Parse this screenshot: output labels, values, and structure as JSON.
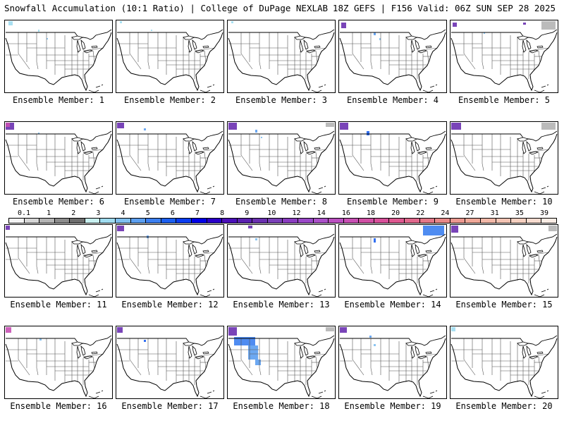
{
  "header": {
    "title": "Snowfall Accumulation (10:1 Ratio) | College of DuPage NEXLAB",
    "subtitle": "18Z GEFS | F156 Valid: 06Z SUN SEP 28 2025"
  },
  "panels": [
    {
      "caption": "Ensemble Member: 1",
      "member": 1
    },
    {
      "caption": "Ensemble Member: 2",
      "member": 2
    },
    {
      "caption": "Ensemble Member: 3",
      "member": 3
    },
    {
      "caption": "Ensemble Member: 4",
      "member": 4
    },
    {
      "caption": "Ensemble Member: 5",
      "member": 5
    },
    {
      "caption": "Ensemble Member: 6",
      "member": 6
    },
    {
      "caption": "Ensemble Member: 7",
      "member": 7
    },
    {
      "caption": "Ensemble Member: 8",
      "member": 8
    },
    {
      "caption": "Ensemble Member: 9",
      "member": 9
    },
    {
      "caption": "Ensemble Member: 10",
      "member": 10
    },
    {
      "caption": "Ensemble Member: 11",
      "member": 11
    },
    {
      "caption": "Ensemble Member: 12",
      "member": 12
    },
    {
      "caption": "Ensemble Member: 13",
      "member": 13
    },
    {
      "caption": "Ensemble Member: 14",
      "member": 14
    },
    {
      "caption": "Ensemble Member: 15",
      "member": 15
    },
    {
      "caption": "Ensemble Member: 16",
      "member": 16
    },
    {
      "caption": "Ensemble Member: 17",
      "member": 17
    },
    {
      "caption": "Ensemble Member: 18",
      "member": 18
    },
    {
      "caption": "Ensemble Member: 19",
      "member": 19
    },
    {
      "caption": "Ensemble Member: 20",
      "member": 20
    }
  ],
  "colorbar": {
    "labels": [
      "0.1",
      "1",
      "2",
      "3",
      "4",
      "5",
      "6",
      "7",
      "8",
      "9",
      "10",
      "12",
      "14",
      "16",
      "18",
      "20",
      "22",
      "24",
      "27",
      "31",
      "35",
      "39"
    ],
    "colors": [
      "#f4f4f4",
      "#d6d6d6",
      "#b4b4b4",
      "#8c8c8c",
      "#6e6e6e",
      "#c8f0f0",
      "#9fdcf0",
      "#7fbfef",
      "#5c9ff0",
      "#3c7ff0",
      "#1c5ff0",
      "#0a3cf0",
      "#0000e6",
      "#2a00c8",
      "#4a10b8",
      "#5a20b0",
      "#6a30b0",
      "#7a40b8",
      "#8a3cc0",
      "#9a48c8",
      "#aa50c8",
      "#ba50c0",
      "#c850b4",
      "#d050a4",
      "#d8509a",
      "#de5890",
      "#e0688c",
      "#e47888",
      "#e88888",
      "#ec9890",
      "#f0a898",
      "#f2b8a8",
      "#f4c4b4",
      "#f6d0c0",
      "#f8dcd0",
      "#faece4"
    ]
  }
}
